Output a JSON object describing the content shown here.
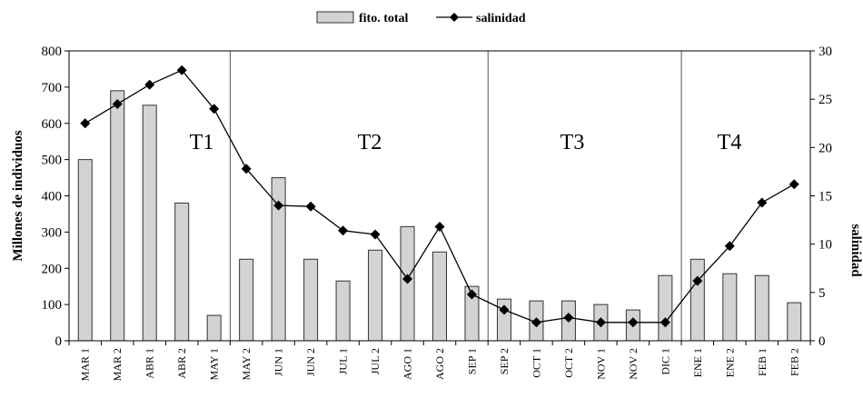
{
  "chart_data": {
    "type": "bar",
    "categories": [
      "MAR 1",
      "MAR 2",
      "ABR 1",
      "ABR 2",
      "MAY 1",
      "MAY 2",
      "JUN 1",
      "JUN 2",
      "JUL 1",
      "JUL 2",
      "AGO 1",
      "AGO 2",
      "SEP 1",
      "SEP 2",
      "OCT 1",
      "OCT 2",
      "NOV 1",
      "NOV 2",
      "DIC 1",
      "ENE 1",
      "ENE 2",
      "FEB 1",
      "FEB 2"
    ],
    "series": [
      {
        "name": "fito. total",
        "type": "bar",
        "axis": "left",
        "values": [
          500,
          690,
          650,
          380,
          70,
          225,
          450,
          225,
          165,
          250,
          315,
          245,
          150,
          115,
          110,
          110,
          100,
          85,
          180,
          225,
          185,
          180,
          105
        ]
      },
      {
        "name": "salinidad",
        "type": "line",
        "axis": "right",
        "values": [
          22.5,
          24.5,
          26.5,
          28.0,
          24.0,
          17.8,
          14.0,
          13.9,
          11.4,
          11.0,
          6.4,
          11.8,
          4.8,
          3.2,
          1.9,
          2.4,
          1.9,
          1.9,
          1.9,
          6.2,
          9.8,
          14.3,
          16.2
        ]
      }
    ],
    "ylabel": "Millones de individuos",
    "y2label": "salinidad",
    "ylim": [
      0,
      800
    ],
    "y2lim": [
      0,
      30
    ],
    "yticks": [
      "0",
      "100",
      "200",
      "300",
      "400",
      "500",
      "600",
      "700",
      "800"
    ],
    "y2ticks": [
      "0",
      "5",
      "10",
      "15",
      "20",
      "25",
      "30"
    ],
    "periods": [
      {
        "label": "T1",
        "start": 0,
        "end": 4
      },
      {
        "label": "T2",
        "start": 5,
        "end": 12
      },
      {
        "label": "T3",
        "start": 13,
        "end": 18
      },
      {
        "label": "T4",
        "start": 19,
        "end": 22
      }
    ],
    "legend_position": "top-center",
    "colors": {
      "bar_fill": "#d3d3d3",
      "bar_stroke": "#333333",
      "line": "#000000",
      "marker": "#000000"
    }
  }
}
